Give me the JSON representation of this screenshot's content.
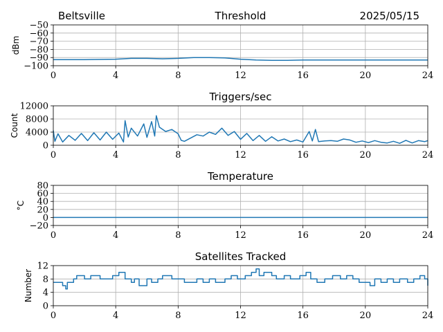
{
  "header": {
    "location": "Beltsville",
    "date": "2025/05/15"
  },
  "colors": {
    "series": "#1f77b4",
    "grid": "#b0b0b0"
  },
  "chart_data": [
    {
      "type": "line",
      "title": "Threshold",
      "xlabel": "",
      "ylabel": "dBm",
      "xlim": [
        0,
        24
      ],
      "ylim": [
        -100,
        -50
      ],
      "xticks": [
        0,
        4,
        8,
        12,
        16,
        20,
        24
      ],
      "xtick_labels": [
        "0",
        "4",
        "8",
        "12",
        "16",
        "20",
        "24"
      ],
      "yticks": [
        -100,
        -90,
        -80,
        -70,
        -60,
        -50
      ],
      "ytick_labels": [
        "−100",
        "−90",
        "−80",
        "−70",
        "−60",
        "−50"
      ],
      "grid": true,
      "series": [
        {
          "x": [
            0,
            2,
            4,
            5,
            6,
            7,
            8,
            9,
            10,
            11,
            12,
            13,
            14,
            15,
            16,
            18,
            20,
            22,
            24
          ],
          "y": [
            -92.5,
            -92.5,
            -92,
            -91,
            -91,
            -91.5,
            -91,
            -90,
            -90,
            -90.5,
            -92,
            -93,
            -93.5,
            -93.5,
            -93,
            -93,
            -93,
            -93,
            -93
          ]
        }
      ]
    },
    {
      "type": "line",
      "title": "Triggers/sec",
      "xlabel": "",
      "ylabel": "Count",
      "xlim": [
        0,
        24
      ],
      "ylim": [
        0,
        12000
      ],
      "xticks": [
        0,
        4,
        8,
        12,
        16,
        20,
        24
      ],
      "xtick_labels": [
        "0",
        "4",
        "8",
        "12",
        "16",
        "20",
        "24"
      ],
      "yticks": [
        0,
        4000,
        8000,
        12000
      ],
      "ytick_labels": [
        "0",
        "4000",
        "8000",
        "12000"
      ],
      "grid": true,
      "series": [
        {
          "x": [
            0,
            0.1,
            0.3,
            0.6,
            1.0,
            1.4,
            1.8,
            2.2,
            2.6,
            3.0,
            3.4,
            3.8,
            4.2,
            4.5,
            4.6,
            4.8,
            5.0,
            5.4,
            5.8,
            6.0,
            6.3,
            6.5,
            6.6,
            6.8,
            7.2,
            7.6,
            8.0,
            8.2,
            8.4,
            8.8,
            9.2,
            9.6,
            10.0,
            10.4,
            10.8,
            11.2,
            11.6,
            12.0,
            12.4,
            12.8,
            13.2,
            13.6,
            14.0,
            14.4,
            14.8,
            15.2,
            15.6,
            16.0,
            16.4,
            16.6,
            16.8,
            17.0,
            17.4,
            17.8,
            18.2,
            18.6,
            19.0,
            19.4,
            19.8,
            20.2,
            20.6,
            21.0,
            21.4,
            21.8,
            22.2,
            22.6,
            23.0,
            23.4,
            23.8,
            24.0
          ],
          "y": [
            4500,
            1200,
            3500,
            1000,
            3000,
            1500,
            3600,
            1400,
            3800,
            1600,
            4000,
            1800,
            3700,
            1000,
            7500,
            2500,
            5200,
            2800,
            6500,
            2400,
            7200,
            2800,
            9000,
            5500,
            4200,
            4800,
            3500,
            1500,
            1200,
            2200,
            3200,
            2800,
            4000,
            3300,
            5200,
            3000,
            4200,
            1800,
            3600,
            1400,
            3000,
            1200,
            2600,
            1300,
            1900,
            1100,
            1600,
            1000,
            4200,
            1300,
            4800,
            1100,
            1300,
            1400,
            1200,
            1900,
            1600,
            900,
            1300,
            800,
            1400,
            900,
            700,
            1200,
            600,
            1500,
            700,
            1400,
            1100,
            1400
          ]
        }
      ]
    },
    {
      "type": "line",
      "title": "Temperature",
      "xlabel": "",
      "ylabel": "°C",
      "xlim": [
        0,
        24
      ],
      "ylim": [
        -20,
        80
      ],
      "xticks": [
        0,
        4,
        8,
        12,
        16,
        20,
        24
      ],
      "xtick_labels": [
        "0",
        "4",
        "8",
        "12",
        "16",
        "20",
        "24"
      ],
      "yticks": [
        -20,
        0,
        20,
        40,
        60,
        80
      ],
      "ytick_labels": [
        "−20",
        "0",
        "20",
        "40",
        "60",
        "80"
      ],
      "grid": true,
      "series": [
        {
          "x": [
            0,
            24
          ],
          "y": [
            0,
            0
          ]
        }
      ]
    },
    {
      "type": "line",
      "title": "Satellites Tracked",
      "xlabel": "",
      "ylabel": "Number",
      "xlim": [
        0,
        24
      ],
      "ylim": [
        0,
        12
      ],
      "xticks": [
        0,
        4,
        8,
        12,
        16,
        20,
        24
      ],
      "xtick_labels": [
        "0",
        "4",
        "8",
        "12",
        "16",
        "20",
        "24"
      ],
      "yticks": [
        0,
        4,
        8,
        12
      ],
      "ytick_labels": [
        "0",
        "4",
        "8",
        "12"
      ],
      "grid": true,
      "series": [
        {
          "step": true,
          "x": [
            0,
            0.6,
            0.8,
            0.9,
            1.3,
            1.5,
            2.0,
            2.4,
            3.0,
            3.8,
            4.2,
            4.6,
            5.0,
            5.2,
            5.5,
            6.0,
            6.3,
            6.7,
            7.0,
            7.6,
            8.0,
            8.4,
            9.2,
            9.6,
            10.0,
            10.4,
            11.0,
            11.4,
            11.8,
            12.3,
            12.7,
            13.0,
            13.2,
            13.5,
            14.0,
            14.3,
            14.8,
            15.2,
            15.8,
            16.2,
            16.5,
            16.9,
            17.4,
            17.9,
            18.4,
            18.8,
            19.2,
            19.6,
            20.0,
            20.3,
            20.6,
            21.0,
            21.4,
            21.8,
            22.2,
            22.7,
            23.1,
            23.5,
            23.8,
            24.0
          ],
          "y": [
            7,
            6,
            5,
            7,
            8,
            9,
            8,
            9,
            8,
            9,
            10,
            8,
            7,
            8,
            6,
            8,
            7,
            8,
            9,
            8,
            8,
            7,
            8,
            7,
            8,
            7,
            8,
            9,
            8,
            9,
            10,
            11,
            9,
            10,
            9,
            8,
            9,
            8,
            9,
            10,
            8,
            7,
            8,
            9,
            8,
            9,
            8,
            7,
            7,
            6,
            8,
            7,
            8,
            7,
            8,
            7,
            8,
            9,
            8,
            6
          ]
        }
      ]
    }
  ]
}
